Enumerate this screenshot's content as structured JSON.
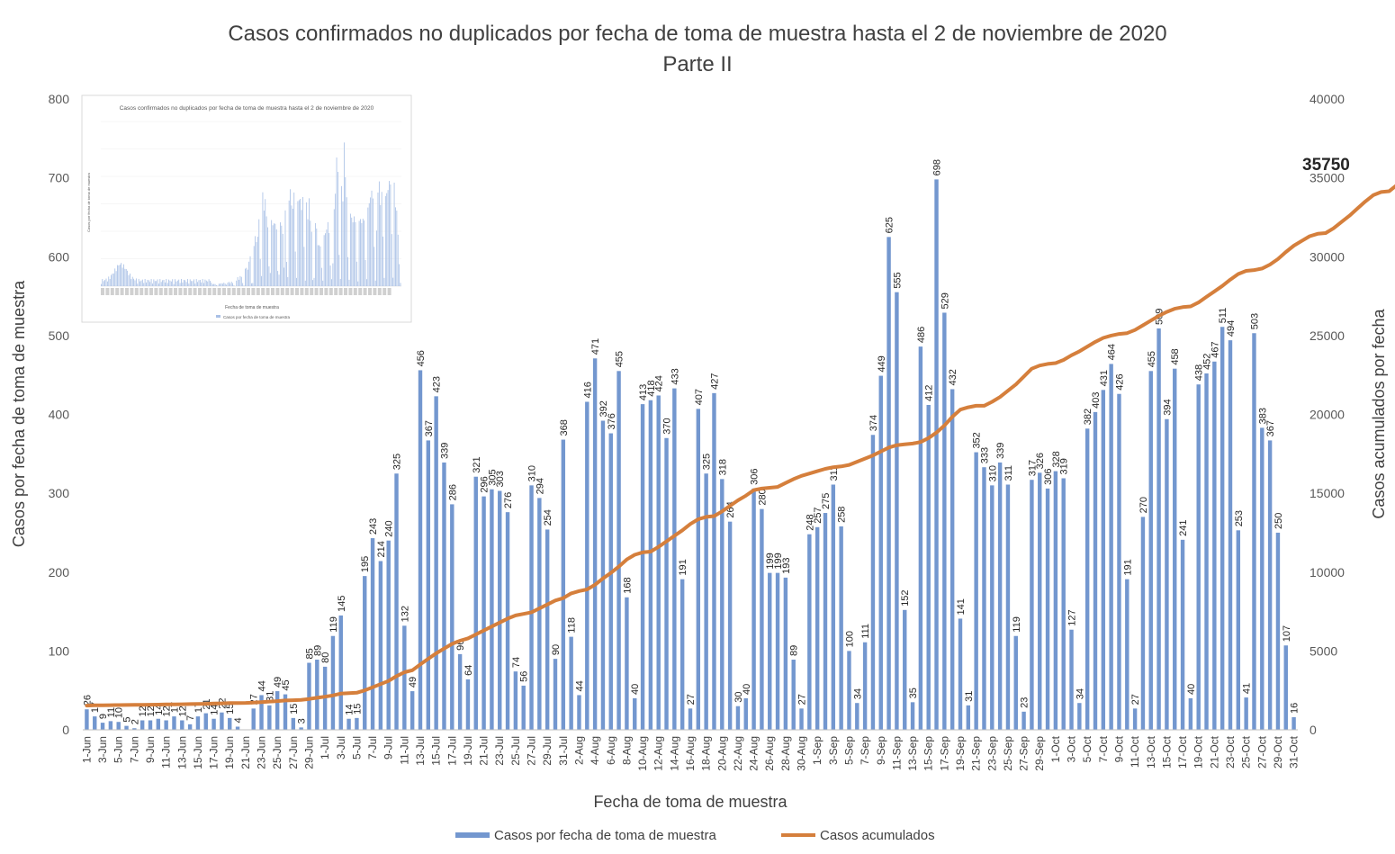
{
  "chart_data": {
    "type": "bar",
    "title": "Casos confirmados no duplicados por fecha de toma de muestra hasta el 2 de noviembre de 2020",
    "subtitle": "Parte II",
    "xlabel": "Fecha de toma de muestra",
    "ylabel": "Casos por fecha de toma de muestra",
    "y2label": "Casos acumulados por fecha",
    "ylim": [
      0,
      800
    ],
    "y2lim": [
      0,
      40000
    ],
    "yticks": [
      0,
      100,
      200,
      300,
      400,
      500,
      600,
      700,
      800
    ],
    "y2ticks": [
      0,
      5000,
      10000,
      15000,
      20000,
      25000,
      30000,
      35000,
      40000
    ],
    "final_cumulative_label": "35750",
    "colors": {
      "bars": "#7397cf",
      "line": "#d57f3c",
      "axis": "#595959"
    },
    "grid": false,
    "legend_position": "bottom",
    "series": [
      {
        "name": "Casos por fecha de toma de muestra",
        "kind": "bar",
        "axis": "left",
        "values": [
          26,
          17,
          9,
          11,
          10,
          5,
          2,
          12,
          12,
          14,
          12,
          17,
          12,
          7,
          17,
          21,
          14,
          22,
          15,
          4,
          0,
          27,
          44,
          31,
          49,
          45,
          15,
          3,
          85,
          89,
          80,
          119,
          145,
          14,
          15,
          195,
          243,
          214,
          240,
          325,
          132,
          49,
          456,
          367,
          423,
          339,
          286,
          96,
          64,
          321,
          296,
          305,
          303,
          276,
          74,
          56,
          310,
          294,
          254,
          90,
          368,
          118,
          44,
          416,
          471,
          392,
          376,
          455,
          168,
          40,
          413,
          418,
          424,
          370,
          433,
          191,
          27,
          407,
          325,
          427,
          318,
          264,
          30,
          40,
          306,
          280,
          199,
          199,
          193,
          89,
          27,
          248,
          257,
          275,
          311,
          258,
          100,
          34,
          111,
          374,
          449,
          625,
          555,
          152,
          35,
          486,
          412,
          698,
          529,
          432,
          141,
          31,
          352,
          333,
          310,
          339,
          311,
          119,
          23,
          317,
          326,
          306,
          328,
          319,
          127,
          34,
          382,
          403,
          431,
          464,
          426,
          191,
          27,
          270,
          455,
          509,
          394,
          458,
          241,
          40,
          438,
          452,
          467,
          511,
          494,
          253,
          41,
          503,
          383,
          367,
          250,
          107,
          16
        ]
      },
      {
        "name": "Casos acumulados",
        "kind": "line",
        "axis": "right",
        "values": [
          1535,
          1550,
          1555,
          1565,
          1570,
          1575,
          1580,
          1585,
          1592,
          1600,
          1608,
          1615,
          1622,
          1630,
          1640,
          1650,
          1665,
          1680,
          1695,
          1700,
          1705,
          1725,
          1760,
          1790,
          1820,
          1860,
          1880,
          1900,
          1960,
          2030,
          2100,
          2180,
          2300,
          2330,
          2350,
          2500,
          2700,
          2900,
          3100,
          3400,
          3650,
          3780,
          4150,
          4500,
          4850,
          5150,
          5450,
          5650,
          5800,
          6050,
          6300,
          6550,
          6800,
          7050,
          7250,
          7350,
          7450,
          7700,
          7950,
          8200,
          8350,
          8650,
          8800,
          8900,
          9200,
          9600,
          9950,
          10350,
          10800,
          11100,
          11250,
          11300,
          11600,
          11950,
          12300,
          12650,
          13050,
          13350,
          13500,
          13550,
          13850,
          14200,
          14550,
          14850,
          15200,
          15300,
          15350,
          15400,
          15650,
          15900,
          16100,
          16250,
          16400,
          16550,
          16650,
          16700,
          16800,
          17000,
          17200,
          17400,
          17650,
          17900,
          18050,
          18100,
          18150,
          18250,
          18500,
          18850,
          19300,
          19850,
          20300,
          20450,
          20550,
          20550,
          20800,
          21100,
          21500,
          21900,
          22400,
          22900,
          23100,
          23200,
          23250,
          23450,
          23750,
          24000,
          24300,
          24600,
          24850,
          25000,
          25100,
          25150,
          25350,
          25650,
          25950,
          26250,
          26500,
          26700,
          26800,
          26850,
          27100,
          27450,
          27800,
          28150,
          28550,
          28900,
          29100,
          29150,
          29250,
          29500,
          29850,
          30300,
          30700,
          31000,
          31300,
          31450,
          31500,
          31800,
          32200,
          32600,
          33050,
          33500,
          33900,
          34100,
          34150,
          34550,
          34900,
          35250,
          35500,
          35650,
          35720,
          35750
        ]
      }
    ],
    "x_tick_labels": [
      "1-Jun",
      "3-Jun",
      "5-Jun",
      "7-Jun",
      "9-Jun",
      "11-Jun",
      "13-Jun",
      "15-Jun",
      "17-Jun",
      "19-Jun",
      "21-Jun",
      "23-Jun",
      "25-Jun",
      "27-Jun",
      "29-Jun",
      "1-Jul",
      "3-Jul",
      "5-Jul",
      "7-Jul",
      "9-Jul",
      "11-Jul",
      "13-Jul",
      "15-Jul",
      "17-Jul",
      "19-Jul",
      "21-Jul",
      "23-Jul",
      "25-Jul",
      "27-Jul",
      "29-Jul",
      "31-Jul",
      "2-Aug",
      "4-Aug",
      "6-Aug",
      "8-Aug",
      "10-Aug",
      "12-Aug",
      "14-Aug",
      "16-Aug",
      "18-Aug",
      "20-Aug",
      "22-Aug",
      "24-Aug",
      "26-Aug",
      "28-Aug",
      "30-Aug",
      "1-Sep",
      "3-Sep",
      "5-Sep",
      "7-Sep",
      "9-Sep",
      "11-Sep",
      "13-Sep",
      "15-Sep",
      "17-Sep",
      "19-Sep",
      "21-Sep",
      "23-Sep",
      "25-Sep",
      "27-Sep",
      "29-Sep",
      "1-Oct",
      "3-Oct",
      "5-Oct",
      "7-Oct",
      "9-Oct",
      "11-Oct",
      "13-Oct",
      "15-Oct",
      "17-Oct",
      "19-Oct",
      "21-Oct",
      "23-Oct",
      "25-Oct",
      "27-Oct",
      "29-Oct",
      "31-Oct"
    ],
    "inset": {
      "title": "Casos confirmados no duplicados por fecha de toma de muestra hasta el 2 de noviembre de 2020",
      "xlabel": "Fecha de toma de muestra",
      "ylabel": "Casos por fecha de toma de muestra",
      "legend": "Casos por fecha de toma de muestra"
    }
  }
}
